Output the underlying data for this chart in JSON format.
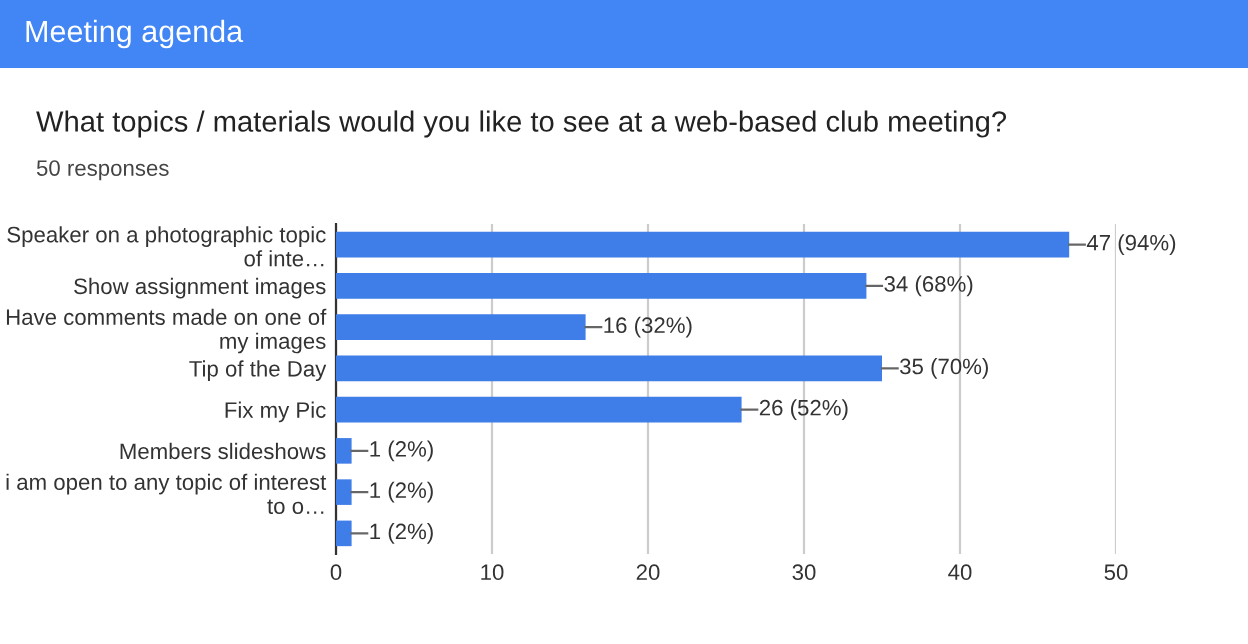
{
  "chart_data": {
    "type": "bar",
    "orientation": "horizontal",
    "title": "Meeting agenda",
    "subtitle": "What topics / materials would you like to see at a web-based club meeting?",
    "annotations": [
      "50 responses"
    ],
    "categories": [
      "Speaker on a photographic topic\nof inte…",
      "Show assignment images",
      "Have comments made on one of\nmy images",
      "Tip of the Day",
      "Fix my Pic",
      "Members slideshows",
      "i am open to any topic of interest\nto o…",
      null
    ],
    "values": [
      47,
      34,
      16,
      35,
      26,
      1,
      1,
      1
    ],
    "value_labels": [
      "47 (94%)",
      "34 (68%)",
      "16 (32%)",
      "35 (70%)",
      "26 (52%)",
      "1 (2%)",
      "1 (2%)",
      "1 (2%)"
    ],
    "color": "#3f7de8",
    "xlim": [
      0,
      50
    ],
    "xticks": [
      0,
      10,
      20,
      30,
      40,
      50
    ],
    "grid": "x",
    "legend": false
  }
}
